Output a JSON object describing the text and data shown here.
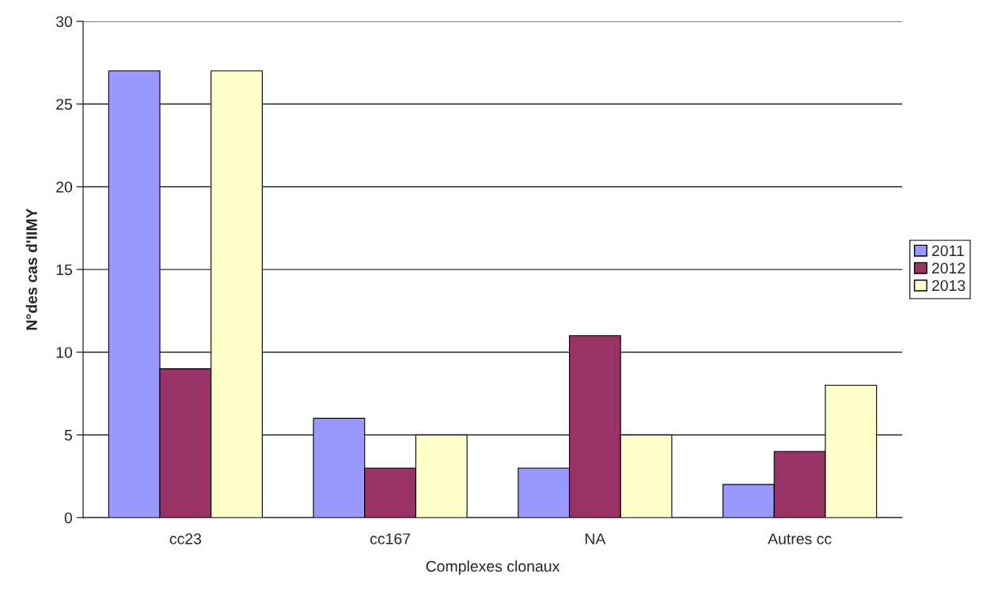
{
  "chart_data": {
    "type": "bar",
    "xlabel": "Complexes clonaux",
    "ylabel": "N°des cas d'IIMY",
    "categories": [
      "cc23",
      "cc167",
      "NA",
      "Autres cc"
    ],
    "series": [
      {
        "name": "2011",
        "color": "#9999ff",
        "values": [
          27,
          6,
          3,
          2
        ]
      },
      {
        "name": "2012",
        "color": "#993366",
        "values": [
          9,
          3,
          11,
          4
        ]
      },
      {
        "name": "2013",
        "color": "#ffffcc",
        "values": [
          27,
          5,
          5,
          8
        ]
      }
    ],
    "ylim": [
      0,
      30
    ],
    "yticks": [
      0,
      5,
      10,
      15,
      20,
      25,
      30
    ],
    "grid": "y",
    "legend": "right"
  }
}
